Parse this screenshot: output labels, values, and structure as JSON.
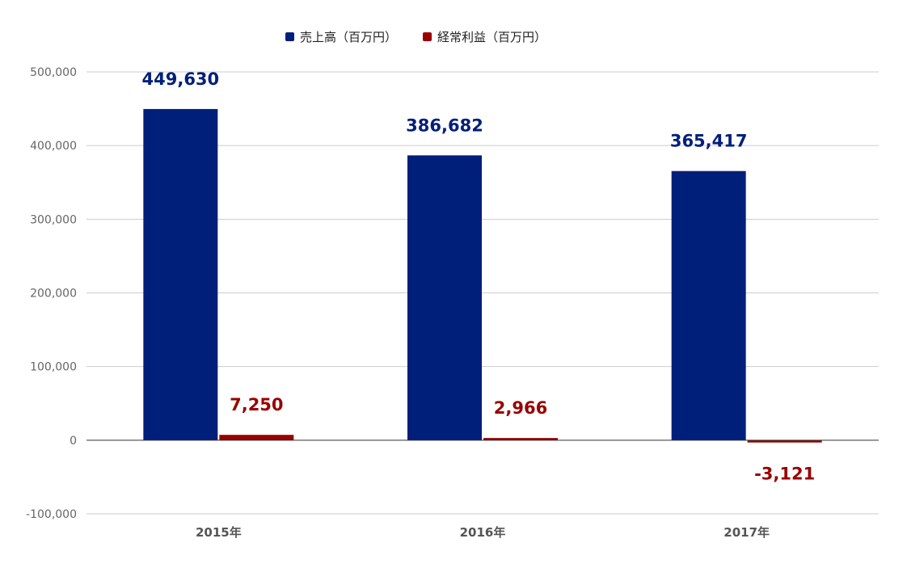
{
  "chart_data": {
    "type": "bar",
    "categories": [
      "2015年",
      "2016年",
      "2017年"
    ],
    "series": [
      {
        "name": "売上高（百万円）",
        "values": [
          449630,
          386682,
          365417
        ],
        "labels": [
          "449,630",
          "386,682",
          "365,417"
        ],
        "color": "#001f7a"
      },
      {
        "name": "経常利益（百万円）",
        "values": [
          7250,
          2966,
          -3121
        ],
        "labels": [
          "7,250",
          "2,966",
          "-3,121"
        ],
        "color": "#990000"
      }
    ],
    "ylim": [
      -100000,
      500000
    ],
    "yticks": [
      500000,
      400000,
      300000,
      200000,
      100000,
      0,
      -100000
    ],
    "ytick_labels": [
      "500,000",
      "400,000",
      "300,000",
      "200,000",
      "100,000",
      "0",
      "-100,000"
    ],
    "grid": true,
    "legend": "top-center"
  }
}
